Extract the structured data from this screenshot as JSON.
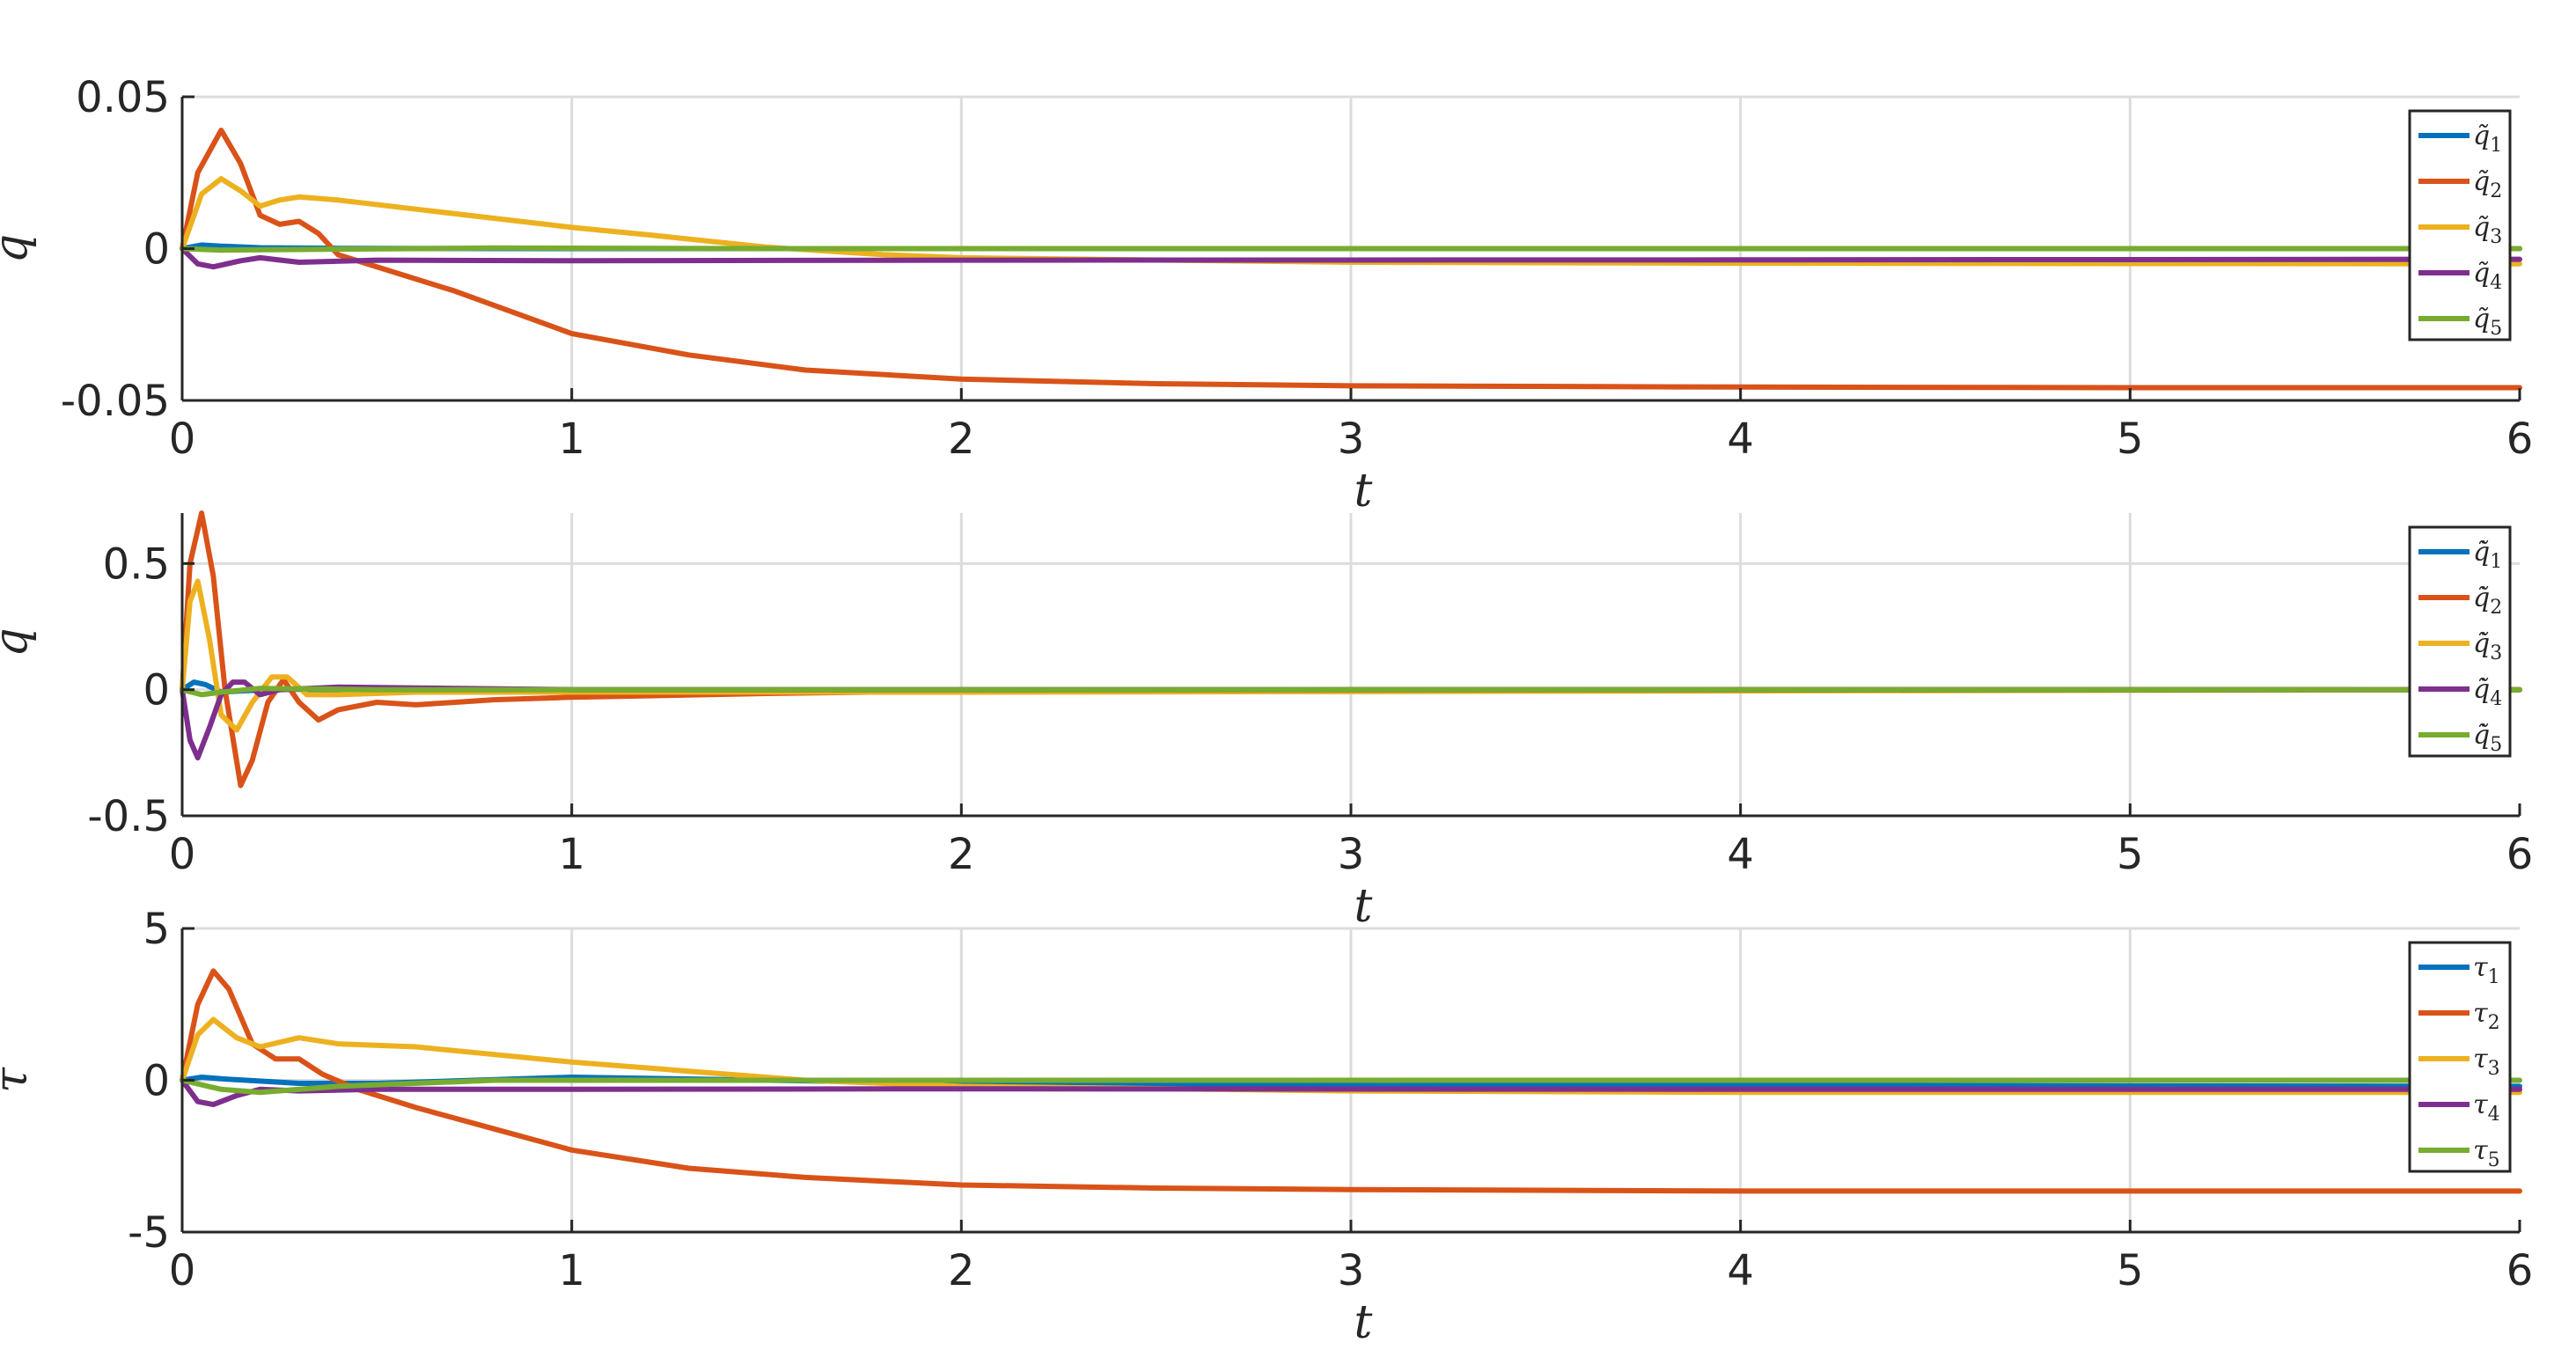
{
  "colors": {
    "series": [
      "#0072BD",
      "#D95319",
      "#EDB120",
      "#7E2F8E",
      "#77AC30"
    ],
    "grid": "#dcdcdc",
    "axis": "#262626"
  },
  "chart_data": [
    {
      "type": "line",
      "ylabel": "q",
      "xlabel": "t",
      "xlim": [
        0,
        6
      ],
      "ylim": [
        -0.05,
        0.05
      ],
      "xticks": [
        "0",
        "1",
        "2",
        "3",
        "4",
        "5",
        "6"
      ],
      "xtick_values": [
        0,
        1,
        2,
        3,
        4,
        5,
        6
      ],
      "yticks": [
        "-0.05",
        "0",
        "0.05"
      ],
      "ytick_values": [
        -0.05,
        0,
        0.05
      ],
      "grid": true,
      "legend_position": "top-right",
      "series": [
        {
          "name": "q̃1",
          "points": [
            [
              0,
              0
            ],
            [
              0.05,
              0.0012
            ],
            [
              0.1,
              0.0008
            ],
            [
              0.2,
              0.0003
            ],
            [
              0.4,
              0.0001
            ],
            [
              1,
              0
            ],
            [
              6,
              0
            ]
          ]
        },
        {
          "name": "q̃2",
          "points": [
            [
              0,
              0
            ],
            [
              0.04,
              0.025
            ],
            [
              0.1,
              0.039
            ],
            [
              0.15,
              0.028
            ],
            [
              0.2,
              0.011
            ],
            [
              0.25,
              0.008
            ],
            [
              0.3,
              0.009
            ],
            [
              0.35,
              0.005
            ],
            [
              0.4,
              -0.002
            ],
            [
              0.5,
              -0.006
            ],
            [
              0.7,
              -0.014
            ],
            [
              1,
              -0.028
            ],
            [
              1.3,
              -0.035
            ],
            [
              1.6,
              -0.04
            ],
            [
              2,
              -0.043
            ],
            [
              2.5,
              -0.0445
            ],
            [
              3,
              -0.0452
            ],
            [
              4,
              -0.0456
            ],
            [
              5,
              -0.0458
            ],
            [
              6,
              -0.0458
            ]
          ]
        },
        {
          "name": "q̃3",
          "points": [
            [
              0,
              0
            ],
            [
              0.05,
              0.018
            ],
            [
              0.1,
              0.023
            ],
            [
              0.15,
              0.019
            ],
            [
              0.2,
              0.014
            ],
            [
              0.25,
              0.016
            ],
            [
              0.3,
              0.017
            ],
            [
              0.4,
              0.016
            ],
            [
              0.6,
              0.013
            ],
            [
              0.8,
              0.01
            ],
            [
              1.0,
              0.007
            ],
            [
              1.2,
              0.0045
            ],
            [
              1.5,
              0.0005
            ],
            [
              1.8,
              -0.002
            ],
            [
              2,
              -0.003
            ],
            [
              3,
              -0.0045
            ],
            [
              4,
              -0.0048
            ],
            [
              6,
              -0.005
            ]
          ]
        },
        {
          "name": "q̃4",
          "points": [
            [
              0,
              0
            ],
            [
              0.04,
              -0.005
            ],
            [
              0.08,
              -0.006
            ],
            [
              0.15,
              -0.004
            ],
            [
              0.2,
              -0.003
            ],
            [
              0.3,
              -0.0045
            ],
            [
              0.5,
              -0.0038
            ],
            [
              1,
              -0.004
            ],
            [
              2,
              -0.0038
            ],
            [
              4,
              -0.0037
            ],
            [
              6,
              -0.0035
            ]
          ]
        },
        {
          "name": "q̃5",
          "points": [
            [
              0,
              0
            ],
            [
              0.1,
              -0.0005
            ],
            [
              0.3,
              -0.0003
            ],
            [
              0.8,
              0.0002
            ],
            [
              1.5,
              0
            ],
            [
              6,
              0
            ]
          ]
        }
      ]
    },
    {
      "type": "line",
      "ylabel": "q̃̇",
      "xlabel": "t",
      "xlim": [
        0,
        6
      ],
      "ylim": [
        -0.5,
        0.7
      ],
      "xticks": [
        "0",
        "1",
        "2",
        "3",
        "4",
        "5",
        "6"
      ],
      "xtick_values": [
        0,
        1,
        2,
        3,
        4,
        5,
        6
      ],
      "yticks": [
        "-0.5",
        "0",
        "0.5"
      ],
      "ytick_values": [
        -0.5,
        0,
        0.5
      ],
      "grid": true,
      "legend_position": "top-right",
      "series": [
        {
          "name": "q̃̇1",
          "points": [
            [
              0,
              0
            ],
            [
              0.03,
              0.03
            ],
            [
              0.06,
              0.02
            ],
            [
              0.1,
              -0.01
            ],
            [
              0.15,
              -0.005
            ],
            [
              0.25,
              0.002
            ],
            [
              0.4,
              0
            ],
            [
              6,
              0
            ]
          ]
        },
        {
          "name": "q̃̇2",
          "points": [
            [
              0,
              0
            ],
            [
              0.02,
              0.5
            ],
            [
              0.05,
              0.7
            ],
            [
              0.08,
              0.45
            ],
            [
              0.11,
              0
            ],
            [
              0.15,
              -0.38
            ],
            [
              0.18,
              -0.28
            ],
            [
              0.22,
              -0.05
            ],
            [
              0.26,
              0.04
            ],
            [
              0.3,
              -0.05
            ],
            [
              0.35,
              -0.12
            ],
            [
              0.4,
              -0.08
            ],
            [
              0.5,
              -0.05
            ],
            [
              0.6,
              -0.06
            ],
            [
              0.8,
              -0.04
            ],
            [
              1,
              -0.03
            ],
            [
              1.5,
              -0.015
            ],
            [
              2,
              -0.005
            ],
            [
              3,
              0
            ],
            [
              6,
              0
            ]
          ]
        },
        {
          "name": "q̃̇3",
          "points": [
            [
              0,
              0
            ],
            [
              0.02,
              0.35
            ],
            [
              0.04,
              0.43
            ],
            [
              0.07,
              0.2
            ],
            [
              0.1,
              -0.1
            ],
            [
              0.14,
              -0.16
            ],
            [
              0.18,
              -0.05
            ],
            [
              0.23,
              0.05
            ],
            [
              0.27,
              0.05
            ],
            [
              0.32,
              -0.02
            ],
            [
              0.4,
              -0.02
            ],
            [
              0.6,
              -0.01
            ],
            [
              1,
              -0.01
            ],
            [
              2,
              -0.01
            ],
            [
              6,
              0
            ]
          ]
        },
        {
          "name": "q̃̇4",
          "points": [
            [
              0,
              0
            ],
            [
              0.02,
              -0.2
            ],
            [
              0.04,
              -0.27
            ],
            [
              0.07,
              -0.15
            ],
            [
              0.1,
              -0.02
            ],
            [
              0.13,
              0.03
            ],
            [
              0.16,
              0.03
            ],
            [
              0.2,
              -0.02
            ],
            [
              0.25,
              0
            ],
            [
              0.4,
              0.01
            ],
            [
              1,
              0
            ],
            [
              6,
              0
            ]
          ]
        },
        {
          "name": "q̃̇5",
          "points": [
            [
              0,
              0
            ],
            [
              0.05,
              -0.02
            ],
            [
              0.1,
              -0.01
            ],
            [
              0.2,
              0.005
            ],
            [
              0.5,
              0
            ],
            [
              6,
              0
            ]
          ]
        }
      ]
    },
    {
      "type": "line",
      "ylabel": "τ",
      "xlabel": "t",
      "xlim": [
        0,
        6
      ],
      "ylim": [
        -5,
        5
      ],
      "xticks": [
        "0",
        "1",
        "2",
        "3",
        "4",
        "5",
        "6"
      ],
      "xtick_values": [
        0,
        1,
        2,
        3,
        4,
        5,
        6
      ],
      "yticks": [
        "-5",
        "0",
        "5"
      ],
      "ytick_values": [
        -5,
        0,
        5
      ],
      "grid": true,
      "legend_position": "top-right",
      "series": [
        {
          "name": "τ1",
          "points": [
            [
              0,
              0
            ],
            [
              0.05,
              0.1
            ],
            [
              0.1,
              0.05
            ],
            [
              0.3,
              -0.1
            ],
            [
              0.5,
              -0.1
            ],
            [
              1,
              0.1
            ],
            [
              1.5,
              0
            ],
            [
              2,
              -0.1
            ],
            [
              3,
              -0.15
            ],
            [
              6,
              -0.2
            ]
          ]
        },
        {
          "name": "τ2",
          "points": [
            [
              0,
              0
            ],
            [
              0.04,
              2.5
            ],
            [
              0.08,
              3.6
            ],
            [
              0.12,
              3.0
            ],
            [
              0.18,
              1.2
            ],
            [
              0.24,
              0.7
            ],
            [
              0.3,
              0.7
            ],
            [
              0.36,
              0.2
            ],
            [
              0.45,
              -0.3
            ],
            [
              0.6,
              -0.9
            ],
            [
              0.8,
              -1.6
            ],
            [
              1,
              -2.3
            ],
            [
              1.3,
              -2.9
            ],
            [
              1.6,
              -3.2
            ],
            [
              2,
              -3.45
            ],
            [
              2.5,
              -3.55
            ],
            [
              3,
              -3.6
            ],
            [
              4,
              -3.65
            ],
            [
              6,
              -3.65
            ]
          ]
        },
        {
          "name": "τ3",
          "points": [
            [
              0,
              0
            ],
            [
              0.04,
              1.5
            ],
            [
              0.08,
              2.0
            ],
            [
              0.14,
              1.4
            ],
            [
              0.2,
              1.1
            ],
            [
              0.3,
              1.4
            ],
            [
              0.4,
              1.2
            ],
            [
              0.6,
              1.1
            ],
            [
              0.8,
              0.85
            ],
            [
              1,
              0.6
            ],
            [
              1.3,
              0.3
            ],
            [
              1.6,
              0
            ],
            [
              2,
              -0.2
            ],
            [
              3,
              -0.35
            ],
            [
              4,
              -0.4
            ],
            [
              6,
              -0.4
            ]
          ]
        },
        {
          "name": "τ4",
          "points": [
            [
              0,
              0
            ],
            [
              0.04,
              -0.7
            ],
            [
              0.08,
              -0.8
            ],
            [
              0.14,
              -0.5
            ],
            [
              0.2,
              -0.3
            ],
            [
              0.3,
              -0.35
            ],
            [
              0.5,
              -0.3
            ],
            [
              1,
              -0.3
            ],
            [
              2,
              -0.28
            ],
            [
              4,
              -0.3
            ],
            [
              6,
              -0.3
            ]
          ]
        },
        {
          "name": "τ5",
          "points": [
            [
              0,
              0
            ],
            [
              0.1,
              -0.3
            ],
            [
              0.2,
              -0.4
            ],
            [
              0.4,
              -0.2
            ],
            [
              0.8,
              0
            ],
            [
              1.5,
              0
            ],
            [
              6,
              0
            ]
          ]
        }
      ]
    }
  ]
}
